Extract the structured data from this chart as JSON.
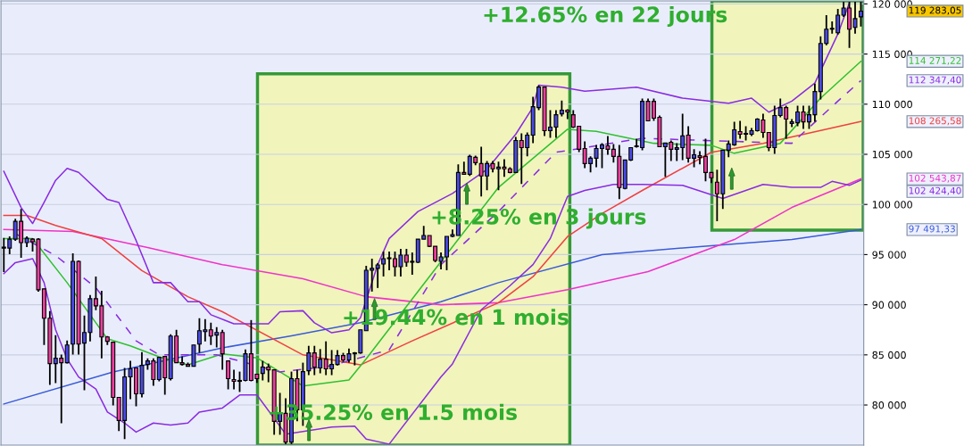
{
  "chart_data": {
    "type": "candlestick",
    "categories": [
      null,
      null,
      null,
      null,
      null,
      null,
      null,
      null,
      null,
      null,
      null,
      null,
      null,
      null,
      null,
      null,
      null,
      null,
      null,
      null,
      null,
      null,
      null,
      null,
      null,
      null,
      null,
      null,
      null,
      null,
      null,
      null,
      null,
      null,
      null,
      null,
      null,
      null,
      null,
      null,
      null,
      null,
      null,
      null,
      null,
      null,
      null,
      null,
      null,
      null,
      null,
      null,
      null,
      null,
      null,
      null,
      null,
      null,
      null,
      null,
      null,
      null,
      null,
      null,
      null,
      null,
      null,
      null,
      null,
      null,
      null,
      null,
      null,
      null,
      null,
      null,
      null,
      null,
      null,
      null,
      null,
      null,
      null,
      null,
      null,
      null,
      null,
      null,
      null,
      null,
      null,
      null,
      null,
      null,
      null,
      null,
      null,
      null,
      null,
      null,
      null,
      null,
      null,
      null,
      null,
      null,
      null,
      null,
      null,
      null,
      null,
      null,
      null,
      null,
      null,
      null,
      null,
      null,
      null,
      null,
      null,
      null,
      null,
      null,
      null,
      null,
      null,
      null,
      null,
      null,
      null,
      null,
      null,
      null,
      null,
      null,
      null,
      null,
      null,
      null,
      null,
      null,
      null,
      null,
      null,
      null,
      null,
      null,
      null,
      null
    ],
    "ohlc": [
      [
        95750,
        96650,
        93250,
        95650
      ],
      [
        95650,
        96810,
        95030,
        96540
      ],
      [
        96540,
        98580,
        96360,
        98320
      ],
      [
        98320,
        99560,
        94680,
        96190
      ],
      [
        96190,
        96810,
        95750,
        96630
      ],
      [
        96540,
        96630,
        95300,
        96280
      ],
      [
        96540,
        96630,
        91310,
        91490
      ],
      [
        91580,
        91580,
        85990,
        88650
      ],
      [
        88650,
        89360,
        82000,
        84130
      ],
      [
        84130,
        86970,
        82180,
        84660
      ],
      [
        84660,
        85020,
        78190,
        84220
      ],
      [
        84220,
        86440,
        84130,
        85990
      ],
      [
        86080,
        95120,
        85020,
        94330
      ],
      [
        94330,
        94420,
        85020,
        86080
      ],
      [
        86170,
        88920,
        81470,
        87230
      ],
      [
        87230,
        90960,
        86350,
        90600
      ],
      [
        90600,
        92820,
        89450,
        89890
      ],
      [
        89890,
        91400,
        84660,
        86790
      ],
      [
        86790,
        86880,
        85990,
        86350
      ],
      [
        86260,
        86260,
        79960,
        80760
      ],
      [
        80760,
        80760,
        77390,
        78460
      ],
      [
        78460,
        83690,
        76600,
        82800
      ],
      [
        82800,
        84400,
        80590,
        83600
      ],
      [
        83690,
        83690,
        79870,
        81120
      ],
      [
        81120,
        85280,
        80760,
        83950
      ],
      [
        84040,
        84660,
        83510,
        84400
      ],
      [
        84400,
        84660,
        81910,
        82540
      ],
      [
        82540,
        84750,
        82360,
        84750
      ],
      [
        84840,
        84840,
        81030,
        82710
      ],
      [
        82630,
        87060,
        82450,
        86880
      ],
      [
        86880,
        87500,
        84220,
        84220
      ],
      [
        84220,
        84840,
        83950,
        84040
      ],
      [
        84040,
        84220,
        83860,
        83860
      ],
      [
        83860,
        85990,
        83860,
        85990
      ],
      [
        86080,
        88650,
        85200,
        87410
      ],
      [
        87320,
        88560,
        86350,
        87500
      ],
      [
        87500,
        88210,
        85990,
        86880
      ],
      [
        86970,
        87770,
        85730,
        87230
      ],
      [
        87230,
        87500,
        83510,
        85110
      ],
      [
        84400,
        84400,
        81560,
        82630
      ],
      [
        82540,
        83510,
        81560,
        82360
      ],
      [
        82360,
        83330,
        81300,
        82450
      ],
      [
        82450,
        85550,
        82360,
        85110
      ],
      [
        85110,
        88470,
        82360,
        82450
      ],
      [
        83070,
        83070,
        82200,
        82630
      ],
      [
        83150,
        84400,
        82450,
        83780
      ],
      [
        83780,
        84130,
        82270,
        83510
      ],
      [
        83510,
        83510,
        77030,
        78370
      ],
      [
        78370,
        81210,
        77030,
        79170
      ],
      [
        79170,
        80680,
        76100,
        76300
      ],
      [
        76300,
        83330,
        76100,
        82630
      ],
      [
        82630,
        83510,
        78370,
        79520
      ],
      [
        79520,
        84220,
        77920,
        83330
      ],
      [
        83420,
        85900,
        82980,
        85200
      ],
      [
        85200,
        85900,
        82980,
        83780
      ],
      [
        83690,
        85580,
        83160,
        84570
      ],
      [
        84570,
        86350,
        82980,
        83600
      ],
      [
        83600,
        85480,
        82980,
        84040
      ],
      [
        84040,
        85480,
        83950,
        84930
      ],
      [
        84930,
        85200,
        84310,
        84490
      ],
      [
        84490,
        85640,
        84220,
        85110
      ],
      [
        85110,
        85280,
        83950,
        85200
      ],
      [
        85200,
        87500,
        85110,
        87500
      ],
      [
        87410,
        93880,
        87410,
        93440
      ],
      [
        93440,
        94590,
        91310,
        93620
      ],
      [
        93620,
        94150,
        91670,
        93970
      ],
      [
        94060,
        95300,
        92820,
        94590
      ],
      [
        94590,
        95300,
        93440,
        94680
      ],
      [
        94590,
        95300,
        92820,
        93790
      ],
      [
        93790,
        95570,
        92820,
        94950
      ],
      [
        94950,
        95570,
        93790,
        94240
      ],
      [
        94240,
        95210,
        92990,
        94330
      ],
      [
        94240,
        96540,
        94150,
        96540
      ],
      [
        96540,
        97870,
        96540,
        96900
      ],
      [
        96900,
        96900,
        95750,
        95830
      ],
      [
        95830,
        95830,
        94240,
        94420
      ],
      [
        94330,
        95210,
        93530,
        94770
      ],
      [
        94770,
        96810,
        93440,
        96810
      ],
      [
        96810,
        97510,
        96720,
        96990
      ],
      [
        96900,
        103990,
        96900,
        103190
      ],
      [
        103190,
        104260,
        103010,
        103010
      ],
      [
        103010,
        104960,
        102840,
        104790
      ],
      [
        104700,
        104870,
        103900,
        104170
      ],
      [
        104080,
        105760,
        100800,
        102840
      ],
      [
        102840,
        104340,
        101420,
        104080
      ],
      [
        104080,
        104340,
        103190,
        103550
      ],
      [
        103550,
        104260,
        101420,
        103720
      ],
      [
        103720,
        104520,
        102750,
        103550
      ],
      [
        103550,
        103720,
        103100,
        103190
      ],
      [
        103190,
        106740,
        103190,
        106380
      ],
      [
        106380,
        107090,
        102040,
        105670
      ],
      [
        105670,
        107180,
        104790,
        106910
      ],
      [
        106910,
        110730,
        106120,
        109750
      ],
      [
        109660,
        111880,
        109400,
        111700
      ],
      [
        111700,
        111700,
        106830,
        107360
      ],
      [
        107360,
        109400,
        106650,
        107710
      ],
      [
        107710,
        109400,
        106650,
        108950
      ],
      [
        109040,
        110370,
        108780,
        109400
      ],
      [
        109400,
        109490,
        108510,
        109220
      ],
      [
        108950,
        109400,
        107620,
        107710
      ],
      [
        107800,
        107800,
        105230,
        105500
      ],
      [
        105580,
        106290,
        103630,
        104080
      ],
      [
        104080,
        104790,
        103190,
        104610
      ],
      [
        104610,
        105940,
        103720,
        105580
      ],
      [
        105580,
        106110,
        103630,
        105940
      ],
      [
        105850,
        106820,
        104960,
        105500
      ],
      [
        105500,
        106030,
        104170,
        104790
      ],
      [
        104790,
        105940,
        100530,
        101680
      ],
      [
        101600,
        104430,
        101510,
        104430
      ],
      [
        104430,
        105670,
        104340,
        105670
      ],
      [
        105760,
        106560,
        105670,
        105850
      ],
      [
        105670,
        110550,
        105410,
        110280
      ],
      [
        110280,
        110550,
        108330,
        108330
      ],
      [
        110280,
        110550,
        108330,
        108600
      ],
      [
        108690,
        108860,
        105760,
        105760
      ],
      [
        105760,
        106120,
        102750,
        106120
      ],
      [
        106200,
        106380,
        104340,
        105500
      ],
      [
        105500,
        106110,
        104340,
        105670
      ],
      [
        105670,
        109040,
        104430,
        106830
      ],
      [
        106910,
        107800,
        104170,
        104610
      ],
      [
        104610,
        105500,
        103720,
        104960
      ],
      [
        104870,
        105320,
        103990,
        104700
      ],
      [
        104790,
        106560,
        102310,
        103190
      ],
      [
        103190,
        103190,
        102130,
        102660
      ],
      [
        102220,
        103460,
        98320,
        101060
      ],
      [
        101060,
        105410,
        99560,
        105410
      ],
      [
        105410,
        106380,
        104700,
        106030
      ],
      [
        105940,
        108240,
        105850,
        107450
      ],
      [
        107270,
        108330,
        106560,
        107000
      ],
      [
        107000,
        107800,
        106380,
        107090
      ],
      [
        107000,
        107620,
        106820,
        107360
      ],
      [
        107360,
        108600,
        107270,
        108510
      ],
      [
        108420,
        109040,
        106650,
        107180
      ],
      [
        107180,
        107180,
        105320,
        105670
      ],
      [
        105670,
        109840,
        105050,
        108870
      ],
      [
        108870,
        110550,
        108690,
        109660
      ],
      [
        109660,
        109840,
        106560,
        108510
      ],
      [
        108070,
        108510,
        107710,
        108240
      ],
      [
        108150,
        109840,
        107800,
        109220
      ],
      [
        109220,
        109840,
        107530,
        108240
      ],
      [
        108240,
        109840,
        107530,
        108950
      ],
      [
        108950,
        112060,
        108240,
        111260
      ],
      [
        111260,
        116760,
        110460,
        116050
      ],
      [
        116050,
        118880,
        115870,
        117470
      ],
      [
        117470,
        118260,
        117030,
        117560
      ],
      [
        117120,
        119500,
        116940,
        118880
      ],
      [
        118880,
        120200,
        118700,
        119590
      ],
      [
        119590,
        120200,
        115600,
        117470
      ],
      [
        117650,
        120200,
        117030,
        118530
      ],
      [
        118710,
        120200,
        117740,
        119283.05
      ]
    ],
    "colors": [
      "#ee3d9f",
      "#4b4be6",
      "#4b4be6",
      "#ee3d9f",
      "#4b4be6",
      "#ee3d9f",
      "#ee3d9f",
      "#ee3d9f",
      "#ee3d9f",
      "#4b4be6",
      "#ee3d9f",
      "#4b4be6",
      "#4b4be6",
      "#ee3d9f",
      "#4b4be6",
      "#4b4be6",
      "#ee3d9f",
      "#ee3d9f",
      "#ee3d9f",
      "#ee3d9f",
      "#ee3d9f",
      "#4b4be6",
      "#4b4be6",
      "#ee3d9f",
      "#4b4be6",
      "#4b4be6",
      "#ee3d9f",
      "#4b4be6",
      "#ee3d9f",
      "#4b4be6",
      "#ee3d9f",
      "#ee3d9f",
      "#ee3d9f",
      "#4b4be6",
      "#4b4be6",
      "#4b4be6",
      "#ee3d9f",
      "#4b4be6",
      "#ee3d9f",
      "#ee3d9f",
      "#ee3d9f",
      "#4b4be6",
      "#4b4be6",
      "#ee3d9f",
      "#ee3d9f",
      "#4b4be6",
      "#ee3d9f",
      "#ee3d9f",
      "#4b4be6",
      "#ee3d9f",
      "#4b4be6",
      "#ee3d9f",
      "#4b4be6",
      "#4b4be6",
      "#ee3d9f",
      "#4b4be6",
      "#ee3d9f",
      "#4b4be6",
      "#4b4be6",
      "#ee3d9f",
      "#4b4be6",
      "#4b4be6",
      "#4b4be6",
      "#4b4be6",
      "#4b4be6",
      "#4b4be6",
      "#4b4be6",
      "#4b4be6",
      "#ee3d9f",
      "#4b4be6",
      "#ee3d9f",
      "#4b4be6",
      "#4b4be6",
      "#4b4be6",
      "#ee3d9f",
      "#ee3d9f",
      "#4b4be6",
      "#4b4be6",
      "#4b4be6",
      "#4b4be6",
      "#ee3d9f",
      "#4b4be6",
      "#ee3d9f",
      "#ee3d9f",
      "#4b4be6",
      "#ee3d9f",
      "#4b4be6",
      "#ee3d9f",
      "#ee3d9f",
      "#4b4be6",
      "#ee3d9f",
      "#4b4be6",
      "#4b4be6",
      "#4b4be6",
      "#ee3d9f",
      "#4b4be6",
      "#4b4be6",
      "#4b4be6",
      "#ee3d9f",
      "#ee3d9f",
      "#ee3d9f",
      "#ee3d9f",
      "#4b4be6",
      "#4b4be6",
      "#4b4be6",
      "#ee3d9f",
      "#ee3d9f",
      "#ee3d9f",
      "#4b4be6",
      "#4b4be6",
      "#4b4be6",
      "#4b4be6",
      "#ee3d9f",
      "#ee3d9f",
      "#ee3d9f",
      "#4b4be6",
      "#ee3d9f",
      "#4b4be6",
      "#4b4be6",
      "#ee3d9f",
      "#4b4be6",
      "#ee3d9f",
      "#ee3d9f",
      "#ee3d9f",
      "#ee3d9f",
      "#4b4be6",
      "#4b4be6",
      "#4b4be6",
      "#ee3d9f",
      "#4b4be6",
      "#4b4be6",
      "#4b4be6",
      "#ee3d9f",
      "#ee3d9f",
      "#4b4be6",
      "#4b4be6",
      "#ee3d9f",
      "#4b4be6",
      "#4b4be6",
      "#ee3d9f",
      "#4b4be6",
      "#4b4be6",
      "#4b4be6",
      "#4b4be6",
      "#4b4be6",
      "#4b4be6",
      "#4b4be6",
      "#ee3d9f",
      "#4b4be6",
      "#4b4be6"
    ],
    "series": [
      {
        "type": "line",
        "color": "#3a5bd9",
        "values": [
          80100,
          null,
          null,
          null,
          null,
          null,
          null,
          null,
          null,
          null,
          null,
          null,
          null,
          null,
          null,
          null,
          null,
          null,
          null,
          83300,
          null,
          null,
          null,
          null,
          null,
          null,
          null,
          null,
          null,
          null,
          null,
          null,
          null,
          null,
          null,
          null,
          null,
          null,
          85700,
          null,
          null,
          null,
          null,
          null,
          null,
          null,
          null,
          null,
          null,
          null,
          86900,
          null,
          null,
          null,
          null,
          null,
          null,
          null,
          null,
          null,
          null,
          null,
          88200,
          null,
          null,
          null,
          null,
          null,
          null,
          null,
          null,
          null,
          null,
          null,
          null,
          null,
          90300,
          null,
          null,
          null,
          null,
          null,
          null,
          null,
          null,
          null,
          92200,
          null,
          null,
          null,
          null,
          null,
          null,
          null,
          null,
          null,
          null,
          null,
          null,
          null,
          null,
          null,
          null,
          null,
          95000,
          null,
          null,
          null,
          null,
          null,
          null,
          null,
          null,
          null,
          null,
          null,
          null,
          null,
          null,
          null,
          null,
          95800,
          null,
          null,
          null,
          null,
          null,
          null,
          null,
          null,
          null,
          null,
          null,
          null,
          null,
          null,
          null,
          96500,
          null,
          null,
          null,
          null,
          null,
          null,
          null,
          null,
          null,
          null,
          null,
          97491.33
        ]
      },
      {
        "type": "line",
        "color": "#f032c8",
        "values": [
          97500,
          null,
          null,
          null,
          null,
          null,
          null,
          null,
          null,
          null,
          null,
          null,
          97300,
          null,
          null,
          null,
          null,
          null,
          null,
          null,
          null,
          null,
          null,
          null,
          null,
          95700,
          null,
          null,
          null,
          null,
          null,
          null,
          null,
          null,
          null,
          null,
          null,
          null,
          94000,
          null,
          null,
          null,
          null,
          null,
          null,
          null,
          null,
          null,
          null,
          null,
          null,
          null,
          92600,
          null,
          null,
          null,
          null,
          null,
          null,
          null,
          null,
          null,
          null,
          90800,
          null,
          null,
          null,
          null,
          null,
          null,
          null,
          null,
          null,
          null,
          null,
          null,
          90000,
          null,
          null,
          null,
          null,
          null,
          null,
          null,
          null,
          null,
          90200,
          null,
          null,
          null,
          null,
          null,
          null,
          null,
          null,
          null,
          null,
          null,
          91500,
          null,
          null,
          null,
          null,
          null,
          null,
          null,
          null,
          null,
          null,
          null,
          null,
          null,
          93300,
          null,
          null,
          null,
          null,
          null,
          null,
          null,
          null,
          null,
          null,
          null,
          null,
          null,
          null,
          96500,
          null,
          null,
          null,
          null,
          null,
          null,
          null,
          null,
          null,
          99700,
          null,
          null,
          null,
          null,
          null,
          null,
          null,
          null,
          null,
          null,
          null,
          102543.87
        ]
      },
      {
        "type": "line",
        "color": "#f04040",
        "values": [
          98900,
          null,
          null,
          null,
          98900,
          null,
          null,
          null,
          null,
          97900,
          null,
          null,
          null,
          null,
          null,
          null,
          null,
          96600,
          null,
          null,
          null,
          null,
          null,
          null,
          93400,
          null,
          null,
          null,
          null,
          null,
          null,
          null,
          90800,
          null,
          null,
          null,
          null,
          null,
          89300,
          null,
          null,
          null,
          null,
          null,
          null,
          null,
          null,
          null,
          null,
          null,
          null,
          null,
          85000,
          null,
          null,
          null,
          null,
          null,
          null,
          null,
          null,
          null,
          84000,
          null,
          null,
          null,
          null,
          null,
          null,
          null,
          null,
          86400,
          null,
          null,
          null,
          null,
          null,
          null,
          null,
          null,
          null,
          null,
          null,
          null,
          null,
          null,
          90200,
          null,
          null,
          null,
          null,
          null,
          92800,
          null,
          null,
          null,
          null,
          null,
          96800,
          null,
          null,
          null,
          null,
          null,
          99100,
          null,
          null,
          null,
          null,
          null,
          null,
          101400,
          null,
          null,
          null,
          null,
          null,
          null,
          null,
          null,
          null,
          null,
          null,
          105200,
          null,
          null,
          null,
          null,
          null,
          null,
          null,
          null,
          106100,
          null,
          null,
          null,
          null,
          null,
          null,
          null,
          null,
          null,
          null,
          null,
          null,
          null,
          null,
          null,
          null,
          108265.58
        ]
      },
      {
        "type": "line",
        "color": "#30c030",
        "values": [
          96600,
          null,
          null,
          null,
          null,
          96600,
          null,
          null,
          null,
          null,
          null,
          92200,
          null,
          null,
          null,
          null,
          null,
          null,
          86600,
          null,
          null,
          null,
          85900,
          null,
          null,
          null,
          null,
          84800,
          null,
          null,
          null,
          null,
          84000,
          null,
          null,
          null,
          null,
          null,
          85100,
          null,
          null,
          null,
          null,
          null,
          84700,
          null,
          null,
          null,
          null,
          null,
          null,
          null,
          81900,
          null,
          null,
          null,
          null,
          null,
          null,
          null,
          82500,
          null,
          null,
          84600,
          null,
          null,
          null,
          null,
          null,
          null,
          null,
          null,
          null,
          null,
          null,
          null,
          94300,
          null,
          null,
          null,
          null,
          null,
          null,
          null,
          null,
          null,
          101700,
          null,
          null,
          null,
          null,
          null,
          null,
          null,
          null,
          null,
          null,
          null,
          107500,
          null,
          null,
          null,
          null,
          107300,
          null,
          null,
          null,
          null,
          null,
          null,
          null,
          null,
          null,
          106100,
          null,
          null,
          null,
          null,
          null,
          null,
          null,
          null,
          null,
          105900,
          null,
          null,
          null,
          105100,
          null,
          null,
          null,
          null,
          null,
          null,
          null,
          106100,
          null,
          null,
          null,
          null,
          null,
          null,
          110600,
          null,
          null,
          null,
          null,
          null,
          null,
          114271.22
        ]
      },
      {
        "type": "line",
        "color": "#8a2be2",
        "line_style": "dashed",
        "values": [
          null,
          null,
          97100,
          null,
          null,
          null,
          null,
          null,
          null,
          94900,
          null,
          null,
          null,
          null,
          null,
          null,
          91700,
          null,
          null,
          null,
          null,
          null,
          null,
          86400,
          null,
          null,
          null,
          85000,
          null,
          null,
          null,
          null,
          null,
          null,
          null,
          null,
          null,
          85000,
          null,
          null,
          null,
          null,
          null,
          null,
          null,
          null,
          null,
          null,
          83300,
          null,
          null,
          null,
          null,
          null,
          null,
          null,
          83800,
          null,
          null,
          null,
          null,
          null,
          null,
          null,
          null,
          null,
          null,
          85500,
          null,
          null,
          null,
          null,
          null,
          null,
          null,
          null,
          94000,
          null,
          null,
          null,
          null,
          null,
          null,
          null,
          null,
          null,
          99300,
          null,
          null,
          null,
          null,
          null,
          null,
          null,
          null,
          null,
          105200,
          null,
          null,
          null,
          null,
          null,
          null,
          null,
          null,
          null,
          null,
          null,
          null,
          null,
          null,
          106600,
          null,
          null,
          null,
          null,
          null,
          null,
          null,
          null,
          null,
          106400,
          null,
          null,
          null,
          null,
          null,
          null,
          null,
          null,
          null,
          null,
          null,
          null,
          null,
          null,
          null,
          106100,
          null,
          null,
          null,
          null,
          null,
          null,
          null,
          110300,
          null,
          null,
          null,
          112347.4
        ]
      },
      {
        "type": "line",
        "color": "#8a2be2",
        "values": [
          103300,
          null,
          null,
          99700,
          null,
          98100,
          null,
          100200,
          null,
          102400,
          null,
          103600,
          null,
          103200,
          null,
          null,
          null,
          null,
          100500,
          null,
          100200,
          null,
          null,
          96400,
          null,
          null,
          92200,
          null,
          null,
          92200,
          null,
          null,
          90300,
          null,
          90300,
          null,
          89000,
          null,
          null,
          null,
          88100,
          null,
          null,
          null,
          null,
          null,
          88100,
          null,
          89300,
          null,
          null,
          null,
          89400,
          null,
          88200,
          null,
          null,
          87200,
          null,
          null,
          87500,
          null,
          88700,
          null,
          null,
          94000,
          null,
          96600,
          null,
          null,
          null,
          null,
          99300,
          null,
          null,
          null,
          null,
          null,
          101100,
          null,
          null,
          null,
          null,
          null,
          103500,
          null,
          null,
          null,
          null,
          107000,
          null,
          null,
          109700,
          111900,
          null,
          null,
          null,
          111700,
          null,
          null,
          null,
          111300,
          null,
          null,
          null,
          null,
          null,
          null,
          null,
          null,
          111700,
          null,
          null,
          null,
          null,
          null,
          null,
          null,
          110600,
          null,
          null,
          null,
          null,
          null,
          null,
          null,
          110100,
          null,
          null,
          null,
          110600,
          null,
          null,
          109200,
          null,
          null,
          null,
          110300,
          null,
          null,
          null,
          112100,
          null,
          null,
          null,
          117000,
          null,
          120100,
          null,
          null
        ]
      },
      {
        "type": "line",
        "color": "#8a2be2",
        "values": [
          93100,
          null,
          94200,
          null,
          null,
          94600,
          null,
          92200,
          null,
          87500,
          null,
          84600,
          null,
          82800,
          null,
          null,
          81600,
          null,
          79300,
          null,
          null,
          78200,
          null,
          77300,
          null,
          null,
          78200,
          null,
          null,
          78000,
          null,
          null,
          78200,
          null,
          79300,
          null,
          null,
          null,
          79700,
          null,
          null,
          81000,
          null,
          null,
          81000,
          null,
          null,
          null,
          null,
          77100,
          null,
          null,
          null,
          null,
          null,
          null,
          null,
          77800,
          null,
          null,
          null,
          77900,
          null,
          76600,
          null,
          null,
          null,
          76100,
          null,
          null,
          null,
          null,
          null,
          null,
          null,
          null,
          82800,
          null,
          84100,
          null,
          null,
          null,
          null,
          89500,
          null,
          null,
          null,
          null,
          91900,
          null,
          null,
          null,
          94000,
          null,
          null,
          96600,
          null,
          null,
          100800,
          null,
          null,
          101400,
          null,
          null,
          null,
          null,
          102000,
          null,
          null,
          null,
          null,
          102000,
          null,
          null,
          null,
          null,
          null,
          null,
          101900,
          null,
          null,
          null,
          null,
          null,
          null,
          100600,
          null,
          null,
          null,
          null,
          null,
          null,
          102000,
          null,
          null,
          null,
          null,
          101700,
          null,
          null,
          null,
          null,
          101700,
          null,
          102300,
          null,
          null,
          101900,
          null,
          102424.4
        ]
      }
    ],
    "ylim": [
      76000,
      120300
    ],
    "yticks": [
      {
        "value": 80000,
        "label": "80 000"
      },
      {
        "value": 85000,
        "label": "85 000"
      },
      {
        "value": 90000,
        "label": "90 000"
      },
      {
        "value": 95000,
        "label": "95 000"
      },
      {
        "value": 100000,
        "label": "100 000"
      },
      {
        "value": 105000,
        "label": "105 000"
      },
      {
        "value": 110000,
        "label": "110 000"
      },
      {
        "value": 115000,
        "label": "115 000"
      },
      {
        "value": 120000,
        "label": "120 000"
      }
    ],
    "grid": "y",
    "annotations": [
      "+12.65% en 22 jours",
      "+8.25% en 3 jours",
      "+19.44% en 1 mois",
      "+35.25% en 1.5 mois",
      "119 283,05",
      "114 271,22",
      "112 347,40",
      "108 265,58",
      "102 543,87",
      "102 424,40",
      "97 491,33"
    ]
  }
}
